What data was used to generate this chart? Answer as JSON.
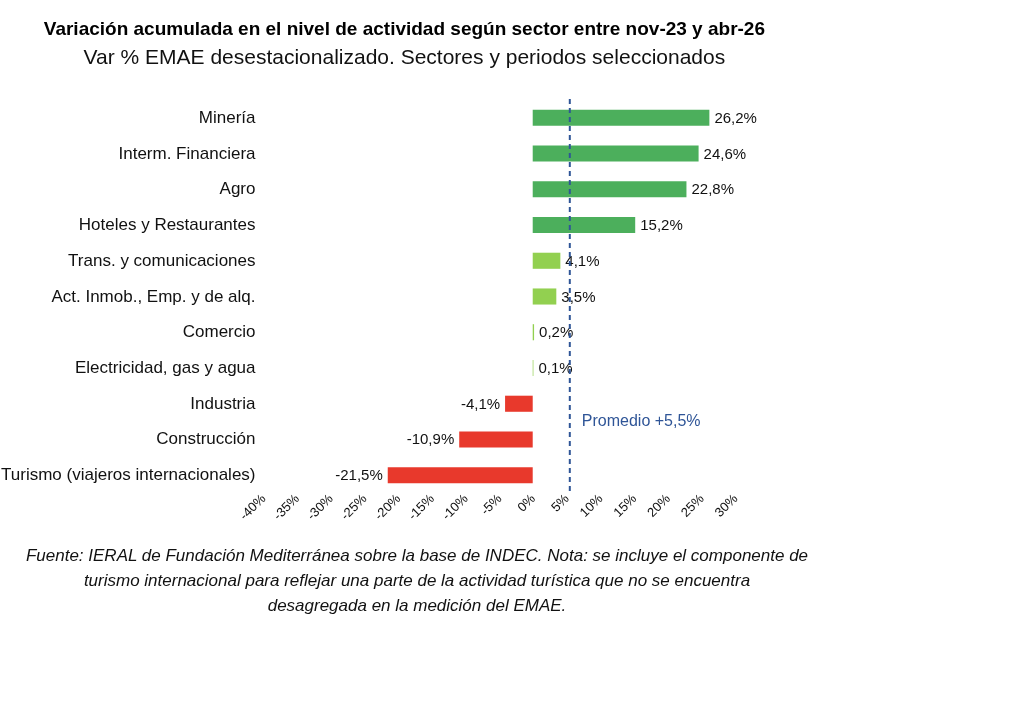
{
  "chart_data": {
    "type": "bar",
    "orientation": "horizontal",
    "title": "Variación acumulada en el nivel de actividad según sector entre nov-23 y abr-26",
    "subtitle": "Var % EMAE desestacionalizado. Sectores y periodos seleccionados",
    "categories": [
      "Minería",
      "Interm. Financiera",
      "Agro",
      "Hoteles y Restaurantes",
      "Trans. y comunicaciones",
      "Act. Inmob., Emp. y de alq.",
      "Comercio",
      "Electricidad, gas y agua",
      "Industria",
      "Construcción",
      "Turismo (viajeros internacionales)"
    ],
    "values": [
      26.2,
      24.6,
      22.8,
      15.2,
      4.1,
      3.5,
      0.2,
      0.1,
      -4.1,
      -10.9,
      -21.5
    ],
    "colors": [
      "#4caf5c",
      "#4caf5c",
      "#4caf5c",
      "#4caf5c",
      "#92d050",
      "#92d050",
      "#92d050",
      "#92d050",
      "#e8392c",
      "#e8392c",
      "#e8392c"
    ],
    "value_labels": [
      "26,2%",
      "24,6%",
      "22,8%",
      "15,2%",
      "4,1%",
      "3,5%",
      "0,2%",
      "0,1%",
      "-4,1%",
      "-10,9%",
      "-21,5%"
    ],
    "xlim": [
      -40,
      30
    ],
    "xticks": [
      {
        "value": -40,
        "label": "-40%"
      },
      {
        "value": -35,
        "label": "-35%"
      },
      {
        "value": -30,
        "label": "-30%"
      },
      {
        "value": -25,
        "label": "-25%"
      },
      {
        "value": -20,
        "label": "-20%"
      },
      {
        "value": -15,
        "label": "-15%"
      },
      {
        "value": -10,
        "label": "-10%"
      },
      {
        "value": -5,
        "label": "-5%"
      },
      {
        "value": 0,
        "label": "0%"
      },
      {
        "value": 5,
        "label": "5%"
      },
      {
        "value": 10,
        "label": "10%"
      },
      {
        "value": 15,
        "label": "15%"
      },
      {
        "value": 20,
        "label": "20%"
      },
      {
        "value": 25,
        "label": "25%"
      },
      {
        "value": 30,
        "label": "30%"
      }
    ],
    "ref_lines": [
      {
        "axis": "x",
        "value": 5.5,
        "label": "Promedio +5,5%",
        "color": "#2f5597",
        "line_style": "dashed"
      }
    ],
    "grid": false,
    "legend": false,
    "annotations": [
      "Fuente: IERAL de Fundación Mediterránea sobre la base de INDEC. Nota: se incluye el componente de turismo internacional para reflejar una parte de la actividad turística que no se encuentra desagregada en la medición del EMAE."
    ]
  }
}
